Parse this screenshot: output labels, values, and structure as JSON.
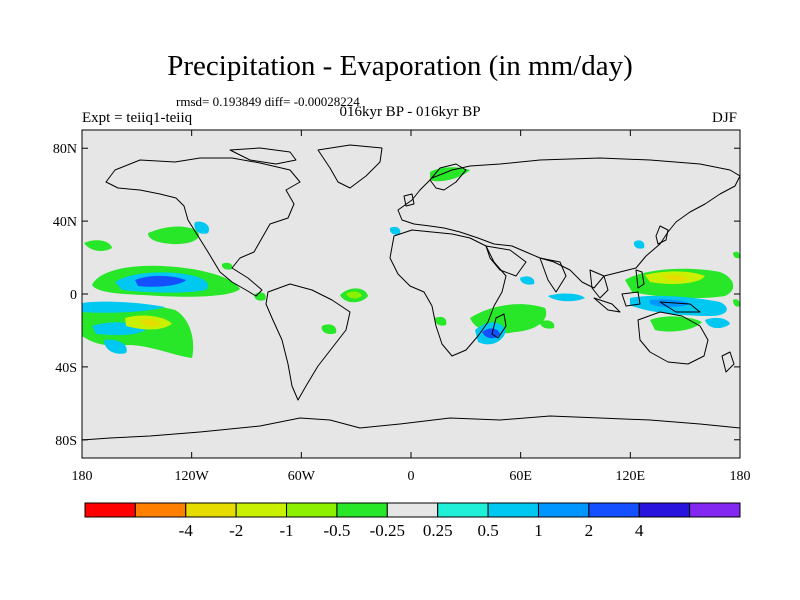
{
  "header": {
    "title": "Precipitation - Evaporation (in mm/day)",
    "stats": "rmsd= 0.193849 diff= -0.00028224",
    "subtitle": "016kyr BP - 016kyr BP",
    "experiment": "Expt = teiiq1-teiiq",
    "season": "DJF"
  },
  "axes": {
    "y_ticks": [
      {
        "label": "80N",
        "lat": 80
      },
      {
        "label": "40N",
        "lat": 40
      },
      {
        "label": "0",
        "lat": 0
      },
      {
        "label": "40S",
        "lat": -40
      },
      {
        "label": "80S",
        "lat": -80
      }
    ],
    "x_ticks": [
      {
        "label": "180",
        "lon": -180
      },
      {
        "label": "120W",
        "lon": -120
      },
      {
        "label": "60W",
        "lon": -60
      },
      {
        "label": "0",
        "lon": 0
      },
      {
        "label": "60E",
        "lon": 60
      },
      {
        "label": "120E",
        "lon": 120
      },
      {
        "label": "180",
        "lon": 180
      }
    ],
    "lon_range": [
      -180,
      180
    ],
    "lat_range": [
      -90,
      90
    ]
  },
  "colorbar": {
    "colors": [
      "#ff0000",
      "#ff8000",
      "#e6dc00",
      "#c8f000",
      "#8cf000",
      "#28e628",
      "#e6e6e6",
      "#20f0d8",
      "#00c8f0",
      "#0096ff",
      "#1450ff",
      "#2814dc",
      "#8228f0"
    ],
    "labels": [
      "-4",
      "-2",
      "-1",
      "-0.5",
      "-0.25",
      "0.25",
      "0.5",
      "1",
      "2",
      "4"
    ],
    "label_positions": [
      2,
      3,
      4,
      5,
      6,
      7,
      8,
      9,
      10,
      11
    ]
  },
  "colors": {
    "background": "#e6e6e6",
    "coast": "#000000"
  }
}
